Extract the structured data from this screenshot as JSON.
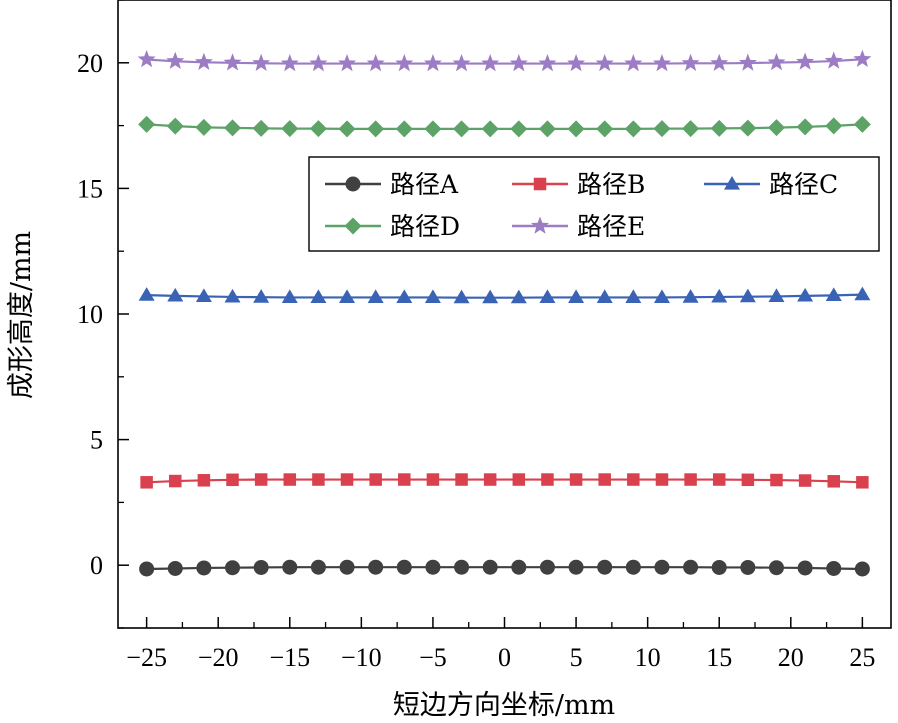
{
  "chart_data": {
    "type": "line",
    "title": "",
    "xlabel": "短边方向坐标/mm",
    "ylabel": "成形高度/mm",
    "xlim": [
      -27,
      27
    ],
    "ylim": [
      -2.5,
      22.5
    ],
    "xticks": [
      -25,
      -20,
      -15,
      -10,
      -5,
      0,
      5,
      10,
      15,
      20,
      25
    ],
    "xtick_labels": [
      "−25",
      "−20",
      "−15",
      "−10",
      "−5",
      "0",
      "5",
      "10",
      "15",
      "20",
      "25"
    ],
    "yticks": [
      0,
      5,
      10,
      15,
      20
    ],
    "ytick_labels": [
      "0",
      "5",
      "10",
      "15",
      "20"
    ],
    "grid": false,
    "legend_position": "upper-right",
    "x": [
      -25,
      -23,
      -21,
      -19,
      -17,
      -15,
      -13,
      -11,
      -9,
      -7,
      -5,
      -3,
      -1,
      1,
      3,
      5,
      7,
      9,
      11,
      13,
      15,
      17,
      19,
      21,
      23,
      25
    ],
    "series": [
      {
        "name": "路径A",
        "color": "#404040",
        "marker": "circle",
        "values": [
          -0.15,
          -0.13,
          -0.11,
          -0.1,
          -0.09,
          -0.08,
          -0.08,
          -0.08,
          -0.08,
          -0.08,
          -0.08,
          -0.08,
          -0.08,
          -0.08,
          -0.08,
          -0.08,
          -0.08,
          -0.08,
          -0.08,
          -0.08,
          -0.09,
          -0.09,
          -0.1,
          -0.11,
          -0.13,
          -0.15
        ]
      },
      {
        "name": "路径B",
        "color": "#d9414f",
        "marker": "square",
        "values": [
          3.3,
          3.35,
          3.38,
          3.4,
          3.41,
          3.41,
          3.41,
          3.41,
          3.41,
          3.41,
          3.41,
          3.41,
          3.41,
          3.41,
          3.41,
          3.41,
          3.41,
          3.41,
          3.41,
          3.41,
          3.41,
          3.4,
          3.39,
          3.37,
          3.34,
          3.3
        ]
      },
      {
        "name": "路径C",
        "color": "#3a63b5",
        "marker": "triangle",
        "values": [
          10.75,
          10.72,
          10.7,
          10.68,
          10.67,
          10.66,
          10.66,
          10.66,
          10.66,
          10.66,
          10.66,
          10.65,
          10.65,
          10.65,
          10.66,
          10.66,
          10.66,
          10.66,
          10.66,
          10.67,
          10.68,
          10.69,
          10.7,
          10.72,
          10.74,
          10.77
        ]
      },
      {
        "name": "路径D",
        "color": "#5da367",
        "marker": "diamond",
        "values": [
          17.55,
          17.48,
          17.43,
          17.41,
          17.39,
          17.38,
          17.38,
          17.37,
          17.37,
          17.37,
          17.37,
          17.37,
          17.37,
          17.37,
          17.37,
          17.37,
          17.37,
          17.37,
          17.38,
          17.38,
          17.39,
          17.4,
          17.42,
          17.45,
          17.49,
          17.55
        ]
      },
      {
        "name": "路径E",
        "color": "#9c7cc4",
        "marker": "star",
        "values": [
          20.13,
          20.06,
          20.02,
          20.0,
          19.98,
          19.97,
          19.97,
          19.97,
          19.97,
          19.97,
          19.97,
          19.97,
          19.97,
          19.97,
          19.97,
          19.97,
          19.97,
          19.97,
          19.97,
          19.98,
          19.98,
          19.99,
          20.01,
          20.03,
          20.07,
          20.14
        ]
      }
    ]
  }
}
